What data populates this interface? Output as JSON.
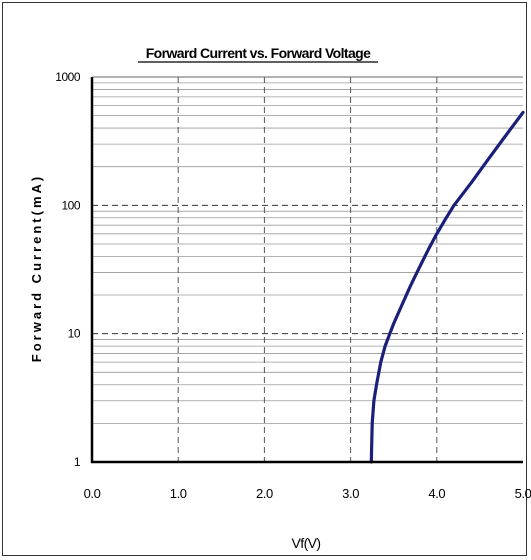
{
  "chart_data": {
    "type": "line",
    "title": "Forward Current vs. Forward Voltage",
    "xlabel": "Vf(V)",
    "ylabel": "Forward Current(mA)",
    "xlim": [
      0.0,
      5.0
    ],
    "ylim": [
      1,
      1000
    ],
    "yscale": "log",
    "x_ticks": [
      "0.0",
      "1.0",
      "2.0",
      "3.0",
      "4.0",
      "5.0"
    ],
    "y_ticks": [
      "1",
      "10",
      "100",
      "1000"
    ],
    "grid": true,
    "colors": {
      "curve": "#1a1f7a",
      "axis": "#000000",
      "grid": "#9a9a9a"
    },
    "series": [
      {
        "x": [
          3.24,
          3.25,
          3.27,
          3.3,
          3.35,
          3.4,
          3.5,
          3.6,
          3.7,
          3.8,
          3.9,
          4.0,
          4.1,
          4.2,
          4.4,
          4.6,
          4.8,
          5.0
        ],
        "y": [
          1,
          2,
          3,
          4,
          6,
          8,
          12,
          17,
          24,
          33,
          45,
          60,
          78,
          100,
          150,
          230,
          350,
          530
        ]
      }
    ]
  }
}
